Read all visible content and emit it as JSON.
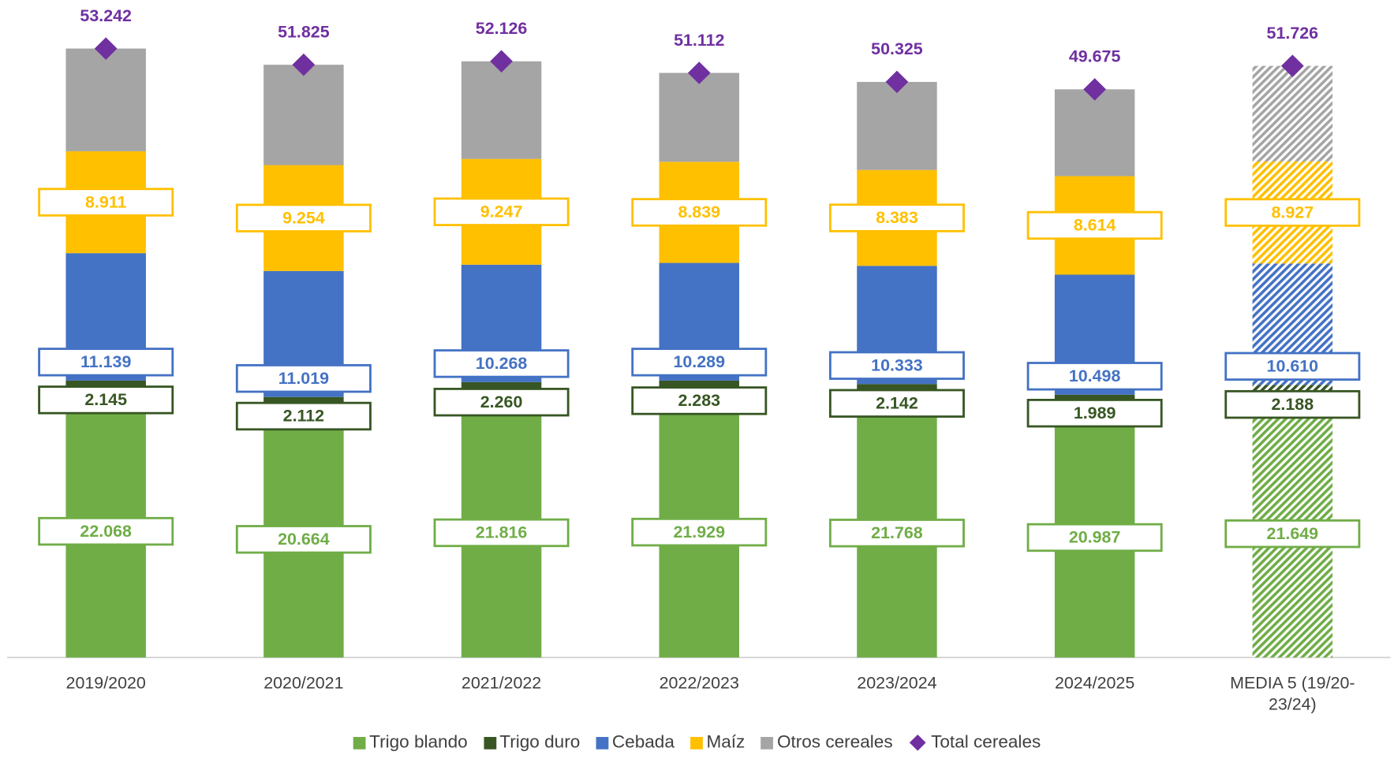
{
  "chart_data": {
    "type": "stacked_bar",
    "categories": [
      "2019/2020",
      "2020/2021",
      "2021/2022",
      "2022/2023",
      "2023/2024",
      "2024/2025",
      "MEDIA 5 (19/20-23/24)"
    ],
    "hatched": [
      false,
      false,
      false,
      false,
      false,
      false,
      true
    ],
    "series": [
      {
        "name": "Trigo blando",
        "color": "#70ad47",
        "values": [
          22068,
          20664,
          21816,
          21929,
          21768,
          20987,
          21649
        ],
        "value_labels": [
          "22.068",
          "20.664",
          "21.816",
          "21.929",
          "21.768",
          "20.987",
          "21.649"
        ]
      },
      {
        "name": "Trigo duro",
        "color": "#375623",
        "values": [
          2145,
          2112,
          2260,
          2283,
          2142,
          1989,
          2188
        ],
        "value_labels": [
          "2.145",
          "2.112",
          "2.260",
          "2.283",
          "2.142",
          "1.989",
          "2.188"
        ]
      },
      {
        "name": "Cebada",
        "color": "#4472c4",
        "values": [
          11139,
          11019,
          10268,
          10289,
          10333,
          10498,
          10610
        ],
        "value_labels": [
          "11.139",
          "11.019",
          "10.268",
          "10.289",
          "10.333",
          "10.498",
          "10.610"
        ]
      },
      {
        "name": "Maíz",
        "color": "#ffc000",
        "values": [
          8911,
          9254,
          9247,
          8839,
          8383,
          8614,
          8927
        ],
        "value_labels": [
          "8.911",
          "9.254",
          "9.247",
          "8.839",
          "8.383",
          "8.614",
          "8.927"
        ]
      },
      {
        "name": "Otros cereales",
        "color": "#a5a5a5",
        "values": [
          8979,
          8776,
          8535,
          7772,
          7699,
          7587,
          8352
        ]
      }
    ],
    "total": {
      "name": "Total cereales",
      "color": "#7030a0",
      "values": [
        53242,
        51825,
        52126,
        51112,
        50325,
        49675,
        51726
      ],
      "value_labels": [
        "53.242",
        "51.825",
        "52.126",
        "51.112",
        "50.325",
        "49.675",
        "51.726"
      ]
    },
    "legend": "bottom"
  }
}
